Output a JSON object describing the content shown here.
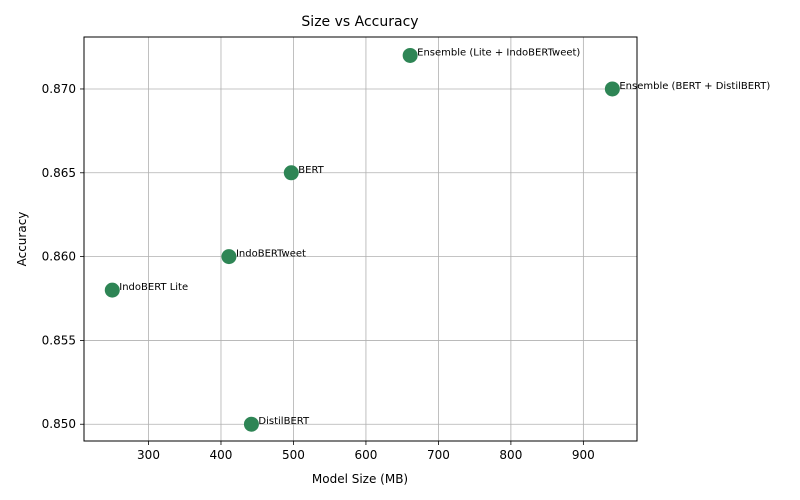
{
  "chart_data": {
    "type": "scatter",
    "title": "Size vs Accuracy",
    "xlabel": "Model Size (MB)",
    "ylabel": "Accuracy",
    "xlim": [
      211,
      974
    ],
    "ylim": [
      0.849,
      0.8731
    ],
    "xticks": [
      300,
      400,
      500,
      600,
      700,
      800,
      900
    ],
    "xtick_labels": [
      "300",
      "400",
      "500",
      "600",
      "700",
      "800",
      "900"
    ],
    "yticks": [
      0.85,
      0.855,
      0.86,
      0.865,
      0.87
    ],
    "ytick_labels": [
      "0.850",
      "0.855",
      "0.860",
      "0.865",
      "0.870"
    ],
    "grid": true,
    "marker_color": "#2e8555",
    "points": [
      {
        "label": "IndoBERT Lite",
        "x": 250,
        "y": 0.858
      },
      {
        "label": "IndoBERTweet",
        "x": 411,
        "y": 0.86
      },
      {
        "label": "DistilBERT",
        "x": 442,
        "y": 0.85
      },
      {
        "label": "BERT",
        "x": 497,
        "y": 0.865
      },
      {
        "label": "Ensemble (Lite + IndoBERTweet)",
        "x": 661,
        "y": 0.872
      },
      {
        "label": "Ensemble (BERT + DistilBERT)",
        "x": 940,
        "y": 0.87
      }
    ]
  }
}
